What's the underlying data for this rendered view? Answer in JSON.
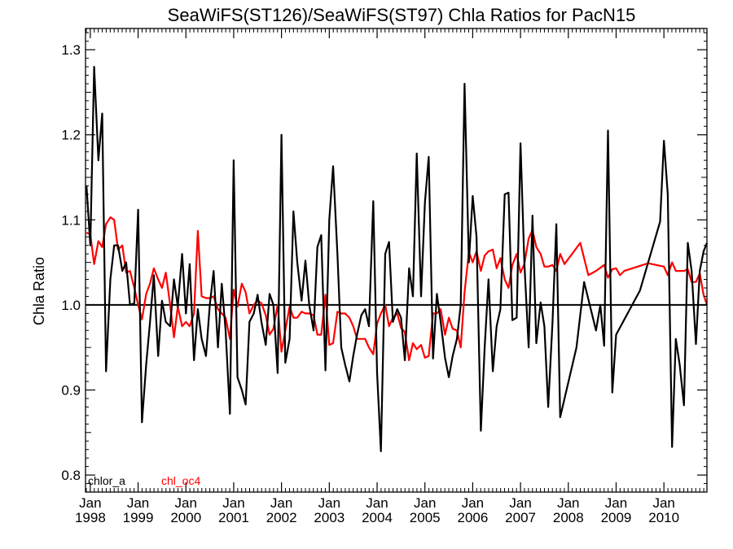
{
  "chart_data": {
    "type": "line",
    "title": "SeaWiFS(ST126)/SeaWiFS(ST97)  Chla Ratios for PacN15",
    "xlabel": "",
    "ylabel": "Chla Ratio",
    "xlim": [
      1997.9,
      2010.9
    ],
    "ylim": [
      0.78,
      1.325
    ],
    "yticks": [
      0.8,
      0.9,
      1.0,
      1.1,
      1.2,
      1.3
    ],
    "ytick_labels": [
      "0.8",
      "0.9",
      "1.0",
      "1.1",
      "1.2",
      "1.3"
    ],
    "xticks": [
      {
        "x": 1998,
        "month": "Jan",
        "year": "1998"
      },
      {
        "x": 1999,
        "month": "Jan",
        "year": "1999"
      },
      {
        "x": 2000,
        "month": "Jan",
        "year": "2000"
      },
      {
        "x": 2001,
        "month": "Jan",
        "year": "2001"
      },
      {
        "x": 2002,
        "month": "Jan",
        "year": "2002"
      },
      {
        "x": 2003,
        "month": "Jan",
        "year": "2003"
      },
      {
        "x": 2004,
        "month": "Jan",
        "year": "2004"
      },
      {
        "x": 2005,
        "month": "Jan",
        "year": "2005"
      },
      {
        "x": 2006,
        "month": "Jan",
        "year": "2006"
      },
      {
        "x": 2007,
        "month": "Jan",
        "year": "2007"
      },
      {
        "x": 2008,
        "month": "Jan",
        "year": "2008"
      },
      {
        "x": 2009,
        "month": "Jan",
        "year": "2009"
      },
      {
        "x": 2010,
        "month": "Jan",
        "year": "2010"
      }
    ],
    "reference_line": 1.0,
    "grid": false,
    "legend_position": "bottom-left",
    "series": [
      {
        "name": "chlor_a",
        "color": "#000000",
        "points": [
          [
            1997.92,
            1.14
          ],
          [
            1998.0,
            1.07
          ],
          [
            1998.08,
            1.28
          ],
          [
            1998.17,
            1.17
          ],
          [
            1998.25,
            1.225
          ],
          [
            1998.33,
            0.922
          ],
          [
            1998.42,
            1.03
          ],
          [
            1998.5,
            1.07
          ],
          [
            1998.58,
            1.07
          ],
          [
            1998.67,
            1.04
          ],
          [
            1998.75,
            1.05
          ],
          [
            1998.83,
            1.0
          ],
          [
            1998.92,
            1.002
          ],
          [
            1999.0,
            1.112
          ],
          [
            1999.08,
            0.862
          ],
          [
            1999.17,
            0.93
          ],
          [
            1999.25,
            0.98
          ],
          [
            1999.33,
            1.035
          ],
          [
            1999.42,
            0.94
          ],
          [
            1999.5,
            1.005
          ],
          [
            1999.58,
            0.98
          ],
          [
            1999.67,
            0.975
          ],
          [
            1999.75,
            1.03
          ],
          [
            1999.83,
            0.998
          ],
          [
            1999.92,
            1.06
          ],
          [
            2000.0,
            0.99
          ],
          [
            2000.08,
            1.048
          ],
          [
            2000.17,
            0.935
          ],
          [
            2000.25,
            0.995
          ],
          [
            2000.33,
            0.96
          ],
          [
            2000.42,
            0.94
          ],
          [
            2000.5,
            1.0
          ],
          [
            2000.58,
            1.04
          ],
          [
            2000.67,
            0.95
          ],
          [
            2000.75,
            1.025
          ],
          [
            2000.83,
            0.97
          ],
          [
            2000.92,
            0.872
          ],
          [
            2001.0,
            1.17
          ],
          [
            2001.08,
            0.915
          ],
          [
            2001.17,
            0.9
          ],
          [
            2001.25,
            0.883
          ],
          [
            2001.33,
            0.98
          ],
          [
            2001.42,
            0.99
          ],
          [
            2001.5,
            1.012
          ],
          [
            2001.58,
            0.98
          ],
          [
            2001.67,
            0.953
          ],
          [
            2001.75,
            1.013
          ],
          [
            2001.83,
            1.0
          ],
          [
            2001.92,
            0.92
          ],
          [
            2002.0,
            1.2
          ],
          [
            2002.08,
            0.932
          ],
          [
            2002.17,
            0.96
          ],
          [
            2002.25,
            1.11
          ],
          [
            2002.33,
            1.05
          ],
          [
            2002.42,
            1.005
          ],
          [
            2002.5,
            1.052
          ],
          [
            2002.58,
            1.0
          ],
          [
            2002.67,
            0.97
          ],
          [
            2002.75,
            1.068
          ],
          [
            2002.83,
            1.082
          ],
          [
            2002.92,
            0.923
          ],
          [
            2003.0,
            1.1
          ],
          [
            2003.08,
            1.163
          ],
          [
            2003.17,
            1.06
          ],
          [
            2003.25,
            0.95
          ],
          [
            2003.33,
            0.93
          ],
          [
            2003.42,
            0.91
          ],
          [
            2003.5,
            0.94
          ],
          [
            2003.58,
            0.965
          ],
          [
            2003.67,
            0.988
          ],
          [
            2003.75,
            0.995
          ],
          [
            2003.83,
            0.975
          ],
          [
            2003.92,
            1.122
          ],
          [
            2004.0,
            0.92
          ],
          [
            2004.08,
            0.828
          ],
          [
            2004.17,
            1.06
          ],
          [
            2004.25,
            1.074
          ],
          [
            2004.33,
            0.98
          ],
          [
            2004.42,
            0.995
          ],
          [
            2004.5,
            0.985
          ],
          [
            2004.58,
            0.935
          ],
          [
            2004.67,
            1.043
          ],
          [
            2004.75,
            1.01
          ],
          [
            2004.83,
            1.178
          ],
          [
            2004.92,
            1.01
          ],
          [
            2005.0,
            1.12
          ],
          [
            2005.08,
            1.174
          ],
          [
            2005.17,
            0.937
          ],
          [
            2005.25,
            1.013
          ],
          [
            2005.33,
            0.98
          ],
          [
            2005.42,
            0.938
          ],
          [
            2005.5,
            0.915
          ],
          [
            2005.58,
            0.94
          ],
          [
            2005.67,
            0.96
          ],
          [
            2005.75,
            1.0
          ],
          [
            2005.83,
            1.26
          ],
          [
            2005.92,
            1.05
          ],
          [
            2006.0,
            1.128
          ],
          [
            2006.08,
            1.08
          ],
          [
            2006.17,
            0.852
          ],
          [
            2006.25,
            0.95
          ],
          [
            2006.33,
            1.03
          ],
          [
            2006.42,
            0.922
          ],
          [
            2006.5,
            0.975
          ],
          [
            2006.58,
            0.995
          ],
          [
            2006.67,
            1.13
          ],
          [
            2006.75,
            1.132
          ],
          [
            2006.83,
            0.982
          ],
          [
            2006.92,
            0.985
          ],
          [
            2007.0,
            1.19
          ],
          [
            2007.08,
            1.05
          ],
          [
            2007.17,
            0.95
          ],
          [
            2007.25,
            1.105
          ],
          [
            2007.33,
            0.955
          ],
          [
            2007.42,
            1.003
          ],
          [
            2007.5,
            0.975
          ],
          [
            2007.58,
            0.88
          ],
          [
            2007.67,
            0.98
          ],
          [
            2007.75,
            1.095
          ],
          [
            2007.83,
            0.868
          ],
          [
            2008.17,
            0.95
          ],
          [
            2008.33,
            1.027
          ],
          [
            2008.58,
            0.97
          ],
          [
            2008.67,
            1.0
          ],
          [
            2008.75,
            0.952
          ],
          [
            2008.83,
            1.205
          ],
          [
            2008.92,
            0.897
          ],
          [
            2009.0,
            0.965
          ],
          [
            2009.5,
            1.017
          ],
          [
            2009.92,
            1.098
          ],
          [
            2010.0,
            1.193
          ],
          [
            2010.08,
            1.13
          ],
          [
            2010.17,
            0.833
          ],
          [
            2010.25,
            0.96
          ],
          [
            2010.33,
            0.93
          ],
          [
            2010.42,
            0.882
          ],
          [
            2010.5,
            1.073
          ],
          [
            2010.58,
            1.04
          ],
          [
            2010.67,
            0.954
          ],
          [
            2010.75,
            1.04
          ],
          [
            2010.83,
            1.063
          ],
          [
            2010.9,
            1.073
          ]
        ]
      },
      {
        "name": "chl_oc4",
        "color": "#ff0000",
        "points": [
          [
            1997.92,
            1.085
          ],
          [
            1998.0,
            1.083
          ],
          [
            1998.08,
            1.048
          ],
          [
            1998.17,
            1.075
          ],
          [
            1998.25,
            1.068
          ],
          [
            1998.33,
            1.095
          ],
          [
            1998.42,
            1.103
          ],
          [
            1998.5,
            1.1
          ],
          [
            1998.58,
            1.065
          ],
          [
            1998.67,
            1.07
          ],
          [
            1998.75,
            1.038
          ],
          [
            1998.83,
            1.04
          ],
          [
            1998.92,
            1.02
          ],
          [
            1999.0,
            1.0
          ],
          [
            1999.08,
            0.983
          ],
          [
            1999.17,
            1.013
          ],
          [
            1999.25,
            1.025
          ],
          [
            1999.33,
            1.043
          ],
          [
            1999.42,
            1.03
          ],
          [
            1999.5,
            1.02
          ],
          [
            1999.58,
            1.038
          ],
          [
            1999.67,
            1.0
          ],
          [
            1999.75,
            0.962
          ],
          [
            1999.83,
            0.998
          ],
          [
            1999.92,
            0.975
          ],
          [
            2000.0,
            0.98
          ],
          [
            2000.08,
            0.975
          ],
          [
            2000.17,
            0.99
          ],
          [
            2000.25,
            1.087
          ],
          [
            2000.33,
            1.01
          ],
          [
            2000.42,
            1.008
          ],
          [
            2000.5,
            1.008
          ],
          [
            2000.58,
            1.01
          ],
          [
            2000.67,
            0.995
          ],
          [
            2000.75,
            0.99
          ],
          [
            2000.83,
            0.985
          ],
          [
            2000.92,
            0.96
          ],
          [
            2001.0,
            1.018
          ],
          [
            2001.08,
            0.998
          ],
          [
            2001.17,
            1.025
          ],
          [
            2001.25,
            1.015
          ],
          [
            2001.33,
            0.99
          ],
          [
            2001.42,
            1.0
          ],
          [
            2001.5,
            1.005
          ],
          [
            2001.58,
            1.002
          ],
          [
            2001.67,
            0.988
          ],
          [
            2001.75,
            0.965
          ],
          [
            2001.83,
            0.972
          ],
          [
            2001.92,
            1.0
          ],
          [
            2002.0,
            0.945
          ],
          [
            2002.08,
            0.97
          ],
          [
            2002.17,
            0.998
          ],
          [
            2002.25,
            0.985
          ],
          [
            2002.33,
            0.985
          ],
          [
            2002.42,
            0.992
          ],
          [
            2002.5,
            0.99
          ],
          [
            2002.58,
            0.99
          ],
          [
            2002.67,
            0.988
          ],
          [
            2002.75,
            0.965
          ],
          [
            2002.83,
            0.965
          ],
          [
            2002.92,
            1.012
          ],
          [
            2003.0,
            0.953
          ],
          [
            2003.08,
            0.955
          ],
          [
            2003.17,
            0.992
          ],
          [
            2003.25,
            0.99
          ],
          [
            2003.33,
            0.99
          ],
          [
            2003.42,
            0.985
          ],
          [
            2003.5,
            0.975
          ],
          [
            2003.58,
            0.96
          ],
          [
            2003.67,
            0.96
          ],
          [
            2003.75,
            0.96
          ],
          [
            2003.83,
            0.95
          ],
          [
            2003.92,
            0.942
          ],
          [
            2004.0,
            0.978
          ],
          [
            2004.08,
            0.99
          ],
          [
            2004.17,
            1.0
          ],
          [
            2004.25,
            0.975
          ],
          [
            2004.33,
            0.985
          ],
          [
            2004.42,
            0.99
          ],
          [
            2004.5,
            0.973
          ],
          [
            2004.58,
            0.968
          ],
          [
            2004.67,
            0.935
          ],
          [
            2004.75,
            0.955
          ],
          [
            2004.83,
            0.948
          ],
          [
            2004.92,
            0.953
          ],
          [
            2005.0,
            0.938
          ],
          [
            2005.08,
            0.94
          ],
          [
            2005.17,
            0.99
          ],
          [
            2005.25,
            0.99
          ],
          [
            2005.33,
            0.995
          ],
          [
            2005.42,
            0.965
          ],
          [
            2005.5,
            0.985
          ],
          [
            2005.58,
            0.972
          ],
          [
            2005.67,
            0.97
          ],
          [
            2005.75,
            0.95
          ],
          [
            2005.83,
            1.015
          ],
          [
            2005.92,
            1.062
          ],
          [
            2006.0,
            1.05
          ],
          [
            2006.08,
            1.063
          ],
          [
            2006.17,
            1.04
          ],
          [
            2006.25,
            1.058
          ],
          [
            2006.33,
            1.063
          ],
          [
            2006.42,
            1.065
          ],
          [
            2006.5,
            1.043
          ],
          [
            2006.58,
            1.055
          ],
          [
            2006.67,
            1.03
          ],
          [
            2006.75,
            1.02
          ],
          [
            2006.83,
            1.047
          ],
          [
            2006.92,
            1.06
          ],
          [
            2007.0,
            1.038
          ],
          [
            2007.08,
            1.048
          ],
          [
            2007.17,
            1.078
          ],
          [
            2007.25,
            1.088
          ],
          [
            2007.33,
            1.068
          ],
          [
            2007.42,
            1.06
          ],
          [
            2007.5,
            1.045
          ],
          [
            2007.58,
            1.045
          ],
          [
            2007.67,
            1.047
          ],
          [
            2007.75,
            1.04
          ],
          [
            2007.83,
            1.06
          ],
          [
            2007.92,
            1.048
          ],
          [
            2008.25,
            1.073
          ],
          [
            2008.42,
            1.035
          ],
          [
            2008.58,
            1.04
          ],
          [
            2008.75,
            1.047
          ],
          [
            2008.83,
            1.032
          ],
          [
            2008.92,
            1.042
          ],
          [
            2009.0,
            1.043
          ],
          [
            2009.08,
            1.035
          ],
          [
            2009.17,
            1.04
          ],
          [
            2009.67,
            1.049
          ],
          [
            2010.0,
            1.045
          ],
          [
            2010.08,
            1.035
          ],
          [
            2010.17,
            1.05
          ],
          [
            2010.25,
            1.04
          ],
          [
            2010.33,
            1.04
          ],
          [
            2010.42,
            1.04
          ],
          [
            2010.5,
            1.042
          ],
          [
            2010.58,
            1.027
          ],
          [
            2010.67,
            1.027
          ],
          [
            2010.75,
            1.037
          ],
          [
            2010.83,
            1.012
          ],
          [
            2010.9,
            1.0
          ]
        ]
      }
    ]
  }
}
